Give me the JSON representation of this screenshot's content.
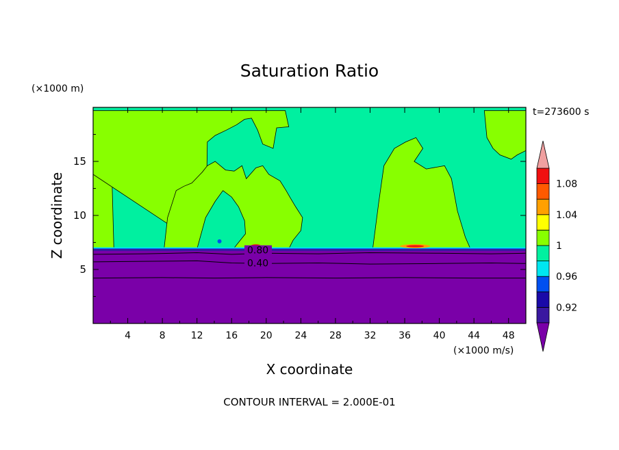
{
  "chart_data": {
    "type": "heatmap",
    "title": "Saturation Ratio",
    "xlabel": "X coordinate",
    "ylabel": "Z coordinate",
    "x_unit": "(×1000 m/s)",
    "y_unit": "(×1000 m)",
    "time_label": "t=273600 s",
    "footer": "CONTOUR INTERVAL = 2.000E-01",
    "xlim": [
      0,
      50
    ],
    "ylim": [
      0,
      20
    ],
    "x_ticks": [
      4,
      8,
      12,
      16,
      20,
      24,
      28,
      32,
      36,
      40,
      44,
      48
    ],
    "y_ticks": [
      5,
      10,
      15
    ],
    "colorbar": {
      "levels": [
        0.9,
        0.92,
        0.94,
        0.96,
        0.98,
        1.0,
        1.02,
        1.04,
        1.06,
        1.08,
        1.1
      ],
      "labels": [
        "0.92",
        "0.96",
        "1",
        "1.04",
        "1.08"
      ],
      "label_values": [
        0.92,
        0.96,
        1.0,
        1.04,
        1.08
      ],
      "colors": [
        "#3a18a0",
        "#1a0aa8",
        "#0050f0",
        "#00e6f0",
        "#00f0a0",
        "#88ff00",
        "#ffff00",
        "#ffa000",
        "#ff5a00",
        "#f01010"
      ],
      "under_color": "#7a00a8",
      "over_color": "#f0a0a0"
    },
    "contour_labels": [
      {
        "text": "0.80",
        "x": 17.8,
        "z": 6.6
      },
      {
        "text": "0.40",
        "x": 17.8,
        "z": 5.4
      }
    ],
    "regions": {
      "dry_layer_top_z": 6.9,
      "background_color": "#00f0a0",
      "supersat_color": "#88ff00",
      "dry_color": "#7a00a8"
    }
  }
}
